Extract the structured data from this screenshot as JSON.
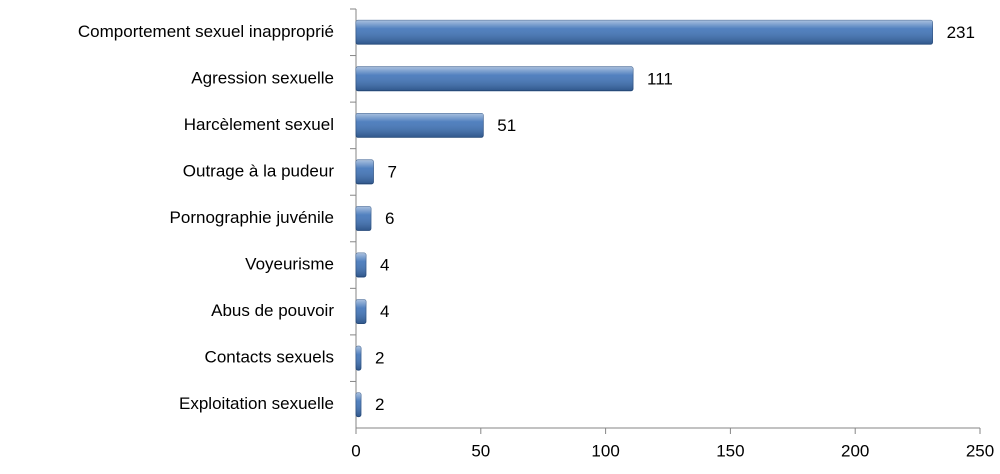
{
  "chart_data": {
    "type": "bar",
    "orientation": "horizontal",
    "categories": [
      "Comportement sexuel inapproprié",
      "Agression sexuelle",
      "Harcèlement sexuel",
      "Outrage à la pudeur",
      "Pornographie juvénile",
      "Voyeurisme",
      "Abus de pouvoir",
      "Contacts sexuels",
      "Exploitation sexuelle"
    ],
    "values": [
      231,
      111,
      51,
      7,
      6,
      4,
      4,
      2,
      2
    ],
    "color": "#3f73b8",
    "xlim": [
      0,
      250
    ],
    "xticks": [
      0,
      50,
      100,
      150,
      200,
      250
    ],
    "grid": false
  }
}
